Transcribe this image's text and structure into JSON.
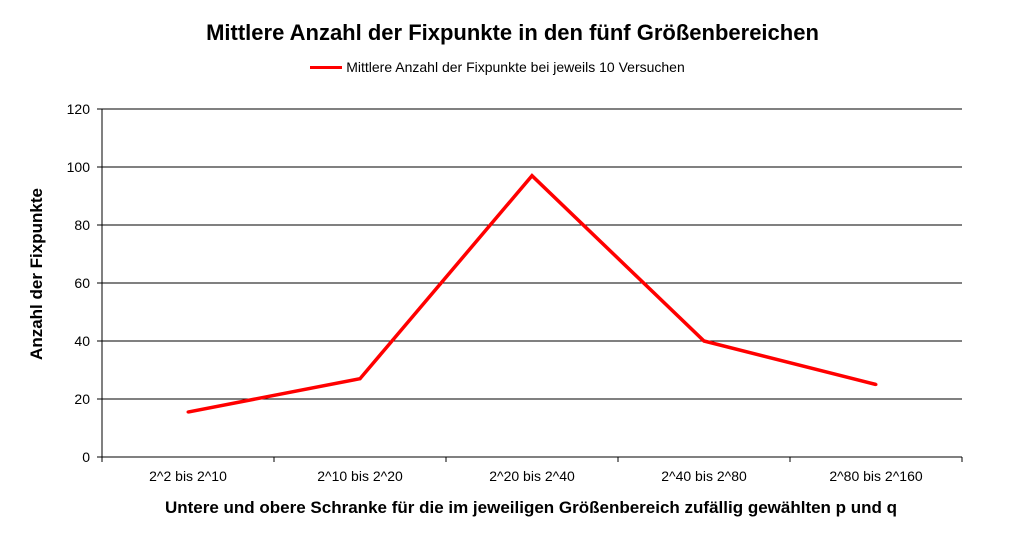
{
  "chart_data": {
    "type": "line",
    "title": "Mittlere Anzahl der Fixpunkte in den fünf Größenbereichen",
    "xlabel": "Untere und obere Schranke für die im jeweiligen Größenbereich zufällig gewählten p und q",
    "ylabel": "Anzahl der Fixpunkte",
    "categories": [
      "2^2 bis 2^10",
      "2^10 bis 2^20",
      "2^20 bis 2^40",
      "2^40 bis 2^80",
      "2^80 bis 2^160"
    ],
    "ylim": [
      0,
      120
    ],
    "yticks": [
      0,
      20,
      40,
      60,
      80,
      100,
      120
    ],
    "grid": true,
    "legend_position": "top",
    "series": [
      {
        "name": "Mittlere Anzahl der Fixpunkte bei jeweils 10 Versuchen",
        "values": [
          15.5,
          27,
          97,
          40,
          25
        ],
        "color": "#ff0000"
      }
    ]
  }
}
